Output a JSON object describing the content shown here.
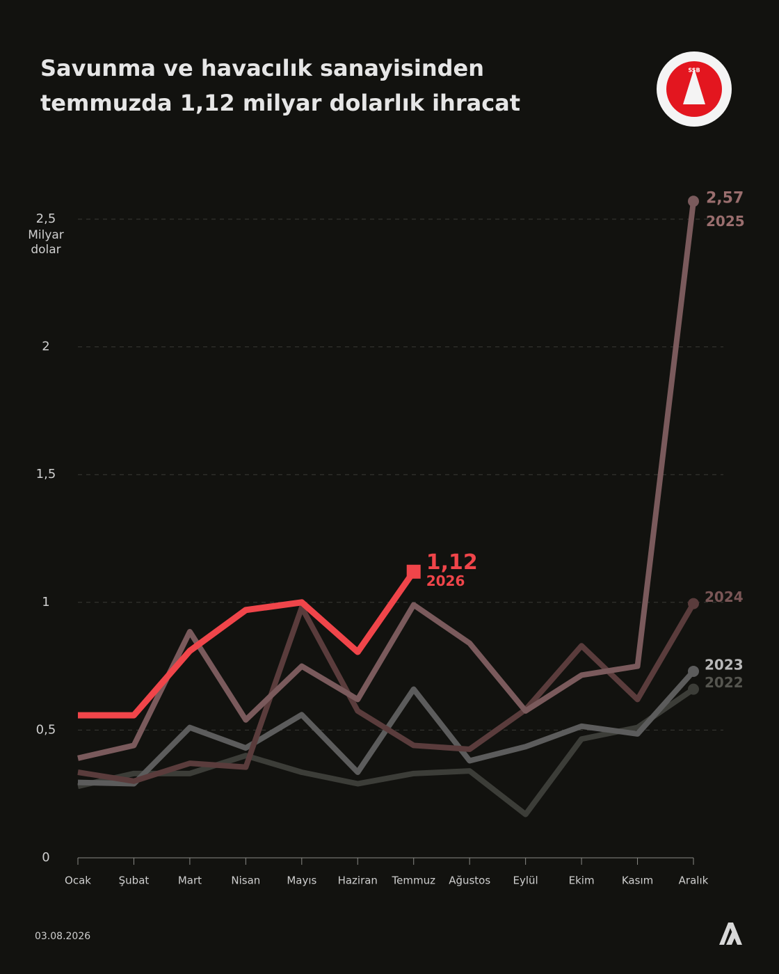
{
  "chart_data": {
    "type": "line",
    "title_lines": [
      "Savunma ve havacılık sanayisinden",
      "temmuzda 1,12 milyar dolarlık ihracat"
    ],
    "y_label_lines": [
      "Milyar",
      "dolar"
    ],
    "categories": [
      "Ocak",
      "Şubat",
      "Mart",
      "Nisan",
      "Mayıs",
      "Haziran",
      "Temmuz",
      "Ağustos",
      "Eylül",
      "Ekim",
      "Kasım",
      "Aralık"
    ],
    "series": [
      {
        "name": "2022",
        "color": "#3c3d38",
        "label_color": "#55554f",
        "values": [
          0.28,
          0.33,
          0.33,
          0.4,
          0.335,
          0.29,
          0.33,
          0.34,
          0.17,
          0.465,
          0.51,
          0.66
        ]
      },
      {
        "name": "2023",
        "color": "#5c5c5c",
        "label_color": "#b8b8b8",
        "values": [
          0.295,
          0.29,
          0.51,
          0.43,
          0.56,
          0.335,
          0.66,
          0.38,
          0.435,
          0.515,
          0.485,
          0.73
        ]
      },
      {
        "name": "2024",
        "color": "#5a3c3c",
        "label_color": "#7a5656",
        "values": [
          0.335,
          0.3,
          0.37,
          0.355,
          0.98,
          0.575,
          0.44,
          0.425,
          0.58,
          0.83,
          0.62,
          0.995
        ]
      },
      {
        "name": "2025",
        "color": "#7a5a5c",
        "label_color": "#9a6e6e",
        "values": [
          0.39,
          0.44,
          0.885,
          0.54,
          0.75,
          0.62,
          0.99,
          0.84,
          0.575,
          0.715,
          0.75,
          2.57
        ],
        "value_labels": [
          null,
          null,
          null,
          null,
          null,
          null,
          null,
          null,
          null,
          null,
          null,
          "2,57"
        ]
      },
      {
        "name": "2026",
        "color": "#f0454a",
        "label_color": "#f0454a",
        "marker": "square",
        "values": [
          0.558,
          0.558,
          0.81,
          0.97,
          1.0,
          0.806,
          1.12,
          null,
          null,
          null,
          null,
          null
        ],
        "value_labels": [
          null,
          null,
          null,
          null,
          null,
          null,
          "1,12",
          null,
          null,
          null,
          null,
          null
        ]
      }
    ],
    "ylim": [
      0,
      2.5
    ],
    "yticks": [
      0,
      {
        "value": 0.5,
        "label": "0,5"
      },
      1,
      {
        "value": 1.5,
        "label": "1,5"
      },
      2,
      {
        "value": 2.5,
        "label": "2,5"
      }
    ],
    "grid": true,
    "date": "03.08.2026",
    "logo_text": "SSB"
  }
}
